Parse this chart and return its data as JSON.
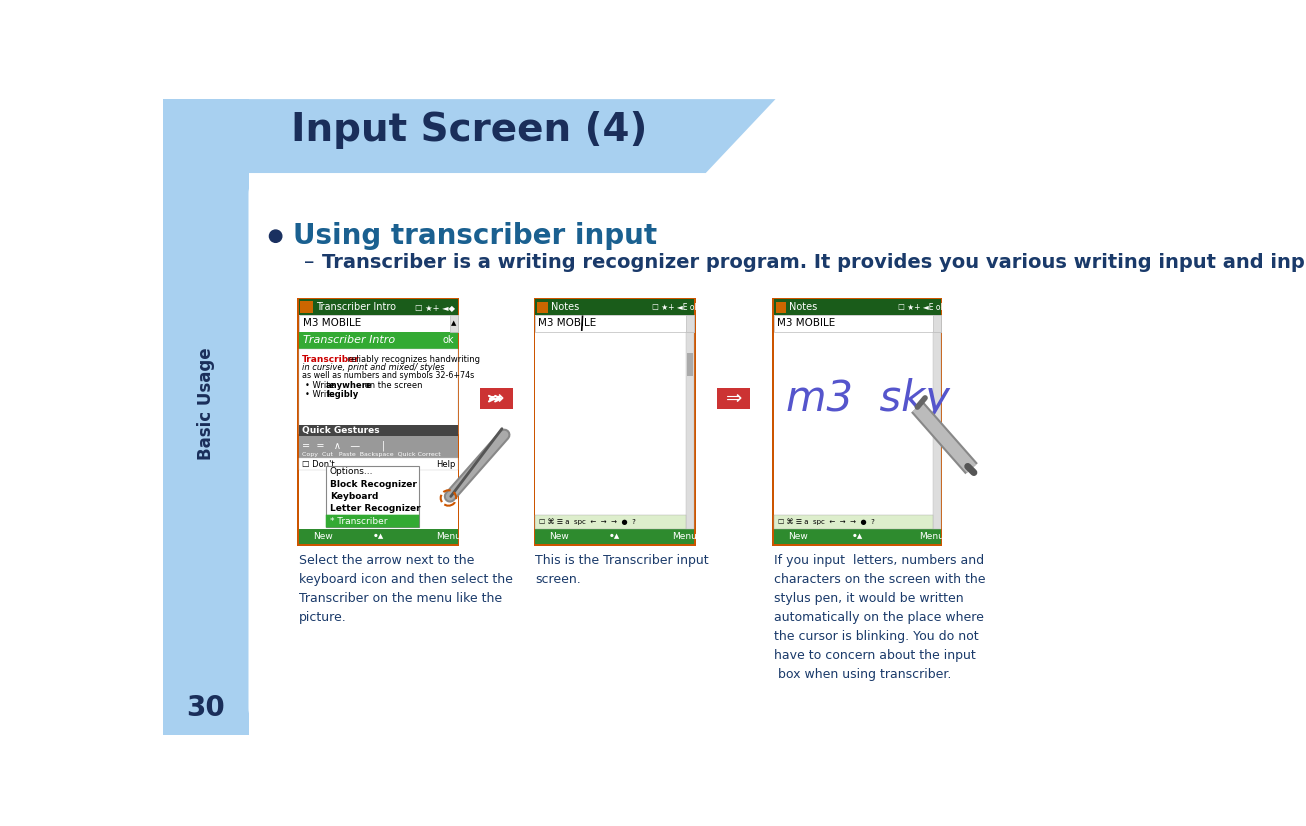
{
  "title": "Input Screen (4)",
  "bullet_head": "Using transcriber input",
  "bullet_sub": "Transcriber is a writing recognizer program. It provides you various writing input and input menu.",
  "side_text": "Basic Usage",
  "page_num": "30",
  "caption1": "Select the arrow next to the\nkeyboard icon and then select the\nTranscriber on the menu like the\npicture.",
  "caption2": "This is the Transcriber input\nscreen.",
  "caption3": "If you input  letters, numbers and\ncharacters on the screen with the\nstylus pen, it would be written\nautomatically on the place where\nthe cursor is blinking. You do not\nhave to concern about the input\n box when using transcriber.",
  "bg_blue": "#A8D0F0",
  "bg_white": "#FFFFFF",
  "title_color": "#1A2E5A",
  "text_dark": "#1A2E5A",
  "text_black": "#333333",
  "caption_color": "#1A3A6A",
  "bullet_color": "#1A6090",
  "sub_color": "#1A3A6A"
}
